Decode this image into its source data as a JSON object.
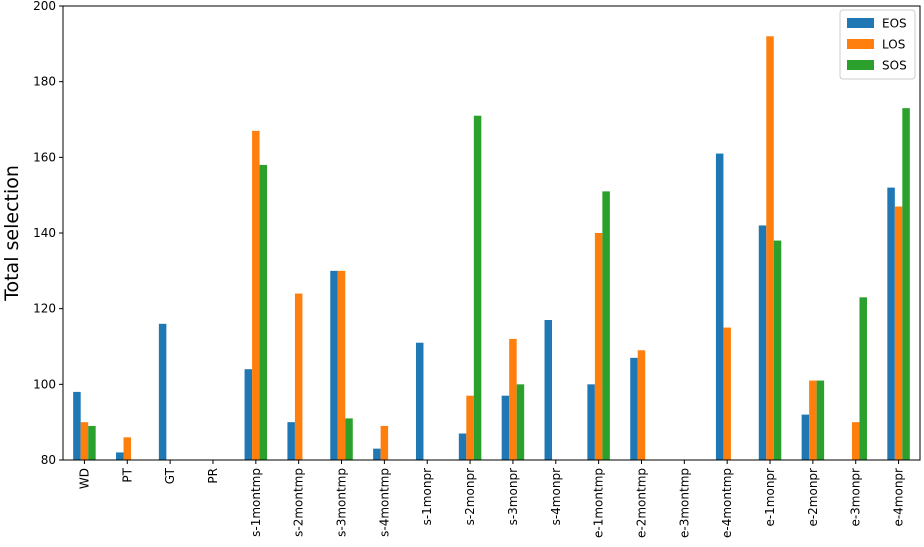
{
  "chart_data": {
    "type": "bar",
    "title": "",
    "xlabel": "",
    "ylabel": "Total selection",
    "ylim": [
      80,
      200
    ],
    "yticks": [
      80,
      100,
      120,
      140,
      160,
      180,
      200
    ],
    "grid": false,
    "legend_position": "top-right",
    "categories": [
      "WD",
      "PT",
      "GT",
      "PR",
      "s-1montmp",
      "s-2montmp",
      "s-3montmp",
      "s-4montmp",
      "s-1monpr",
      "s-2monpr",
      "s-3monpr",
      "s-4monpr",
      "e-1montmp",
      "e-2montmp",
      "e-3montmp",
      "e-4montmp",
      "e-1monpr",
      "e-2monpr",
      "e-3monpr",
      "e-4monpr"
    ],
    "series": [
      {
        "name": "EOS",
        "color": "#1f77b4",
        "values": [
          98,
          82,
          116,
          null,
          104,
          90,
          130,
          83,
          111,
          87,
          97,
          117,
          100,
          107,
          null,
          161,
          142,
          92,
          null,
          152
        ]
      },
      {
        "name": "LOS",
        "color": "#ff7f0e",
        "values": [
          90,
          86,
          null,
          null,
          167,
          124,
          130,
          89,
          null,
          97,
          112,
          null,
          140,
          109,
          null,
          115,
          192,
          101,
          90,
          147
        ]
      },
      {
        "name": "SOS",
        "color": "#2ca02c",
        "values": [
          89,
          null,
          null,
          null,
          158,
          null,
          91,
          null,
          null,
          171,
          100,
          null,
          151,
          null,
          null,
          null,
          138,
          101,
          123,
          173
        ]
      }
    ]
  }
}
